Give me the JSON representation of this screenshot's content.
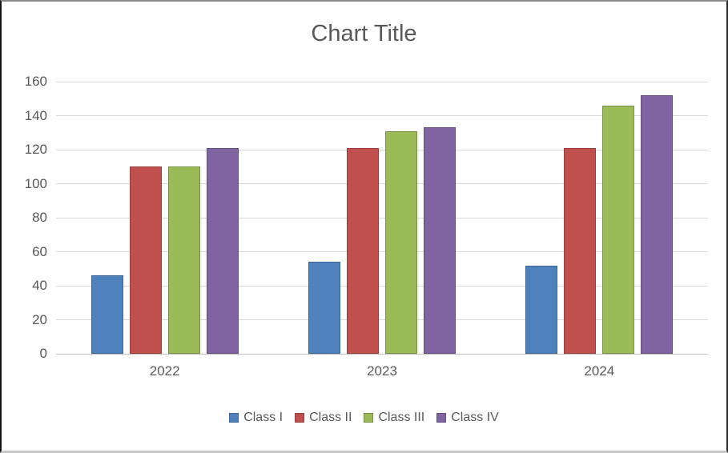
{
  "window": {
    "background": "#FFFFFF",
    "text_color": "#595959",
    "gridline_color": "#D9D9D9",
    "axis_line_color": "#BFBFBF"
  },
  "chart_data": {
    "type": "bar",
    "title": "Chart Title",
    "categories": [
      "2022",
      "2023",
      "2024"
    ],
    "series": [
      {
        "name": "Class I",
        "color": "#4F81BD",
        "values": [
          46,
          54,
          52
        ]
      },
      {
        "name": "Class II",
        "color": "#C0504D",
        "values": [
          110,
          121,
          121
        ]
      },
      {
        "name": "Class III",
        "color": "#9BBB59",
        "values": [
          110,
          131,
          146
        ]
      },
      {
        "name": "Class IV",
        "color": "#8064A2",
        "values": [
          121,
          133,
          152
        ]
      }
    ],
    "xlabel": "",
    "ylabel": "",
    "ylim": [
      0,
      160
    ],
    "y_ticks": [
      0,
      20,
      40,
      60,
      80,
      100,
      120,
      140,
      160
    ],
    "grid": true,
    "legend_position": "bottom"
  }
}
